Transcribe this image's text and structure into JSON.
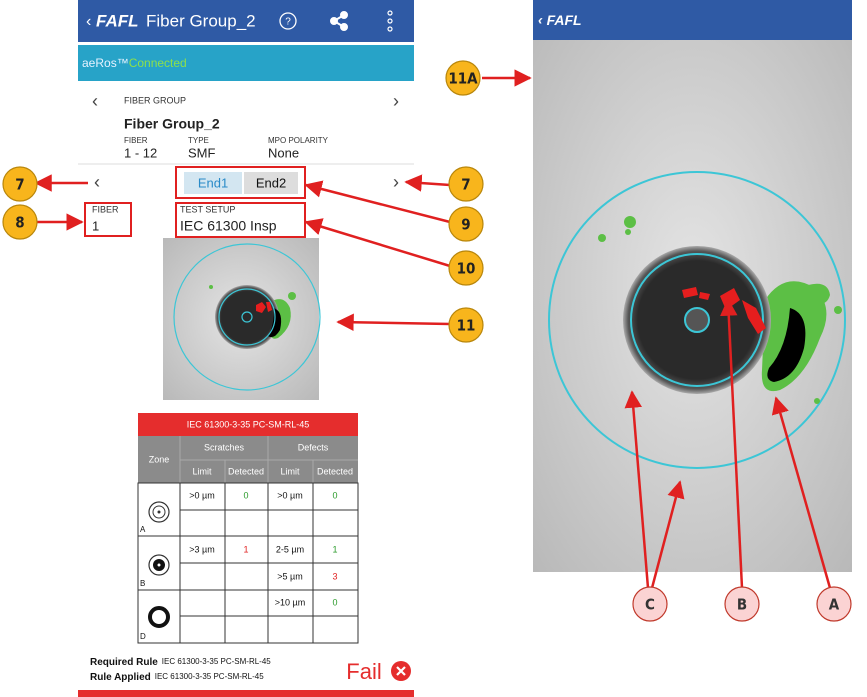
{
  "app_bar": {
    "brand": "FAFL",
    "title": "Fiber Group_2"
  },
  "status": {
    "prefix": "aeRos™",
    "state": "Connected"
  },
  "fiber_group": {
    "label": "FIBER GROUP",
    "name": "Fiber Group_2",
    "fields": [
      {
        "label": "FIBER",
        "value": "1 - 12"
      },
      {
        "label": "TYPE",
        "value": "SMF"
      },
      {
        "label": "MPO POLARITY",
        "value": "None"
      }
    ]
  },
  "ends": [
    "End1",
    "End2"
  ],
  "fiber": {
    "label": "FIBER",
    "value": "1"
  },
  "test_setup": {
    "label": "TEST SETUP",
    "value": "IEC 61300 Insp"
  },
  "table": {
    "title": "IEC 61300-3-35 PC-SM-RL-45",
    "zone_header": "Zone",
    "scratches": "Scratches",
    "defects": "Defects",
    "subheaders": [
      "Limit",
      "Detected",
      "Limit",
      "Detected"
    ],
    "zones": [
      {
        "label": "A",
        "scratch_limit": ">0 µm",
        "scratch_detected": 0,
        "defects": [
          {
            "limit": ">0 µm",
            "detected": 0
          }
        ]
      },
      {
        "label": "B",
        "scratch_limit": ">3 µm",
        "scratch_detected": 1,
        "defects": [
          {
            "limit": "2-5 µm",
            "detected": 1
          },
          {
            "limit": ">5 µm",
            "detected": 3
          }
        ]
      },
      {
        "label": "D",
        "defects": [
          {
            "limit": ">10 µm",
            "detected": 0
          }
        ]
      }
    ]
  },
  "footer": {
    "required_label": "Required Rule",
    "required_value": "IEC 61300-3-35 PC-SM-RL-45",
    "applied_label": "Rule Applied",
    "applied_value": "IEC 61300-3-35 PC-SM-RL-45",
    "result": "Fail"
  },
  "zoom_panel": {
    "brand": "FAFL"
  },
  "callouts": [
    "7",
    "8",
    "7",
    "9",
    "10",
    "11",
    "11A",
    "C",
    "B",
    "A"
  ]
}
